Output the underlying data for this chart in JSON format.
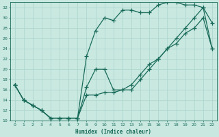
{
  "xlabel": "Humidex (Indice chaleur)",
  "xlim": [
    -0.5,
    22.5
  ],
  "ylim": [
    10,
    33
  ],
  "yticks": [
    10,
    12,
    14,
    16,
    18,
    20,
    22,
    24,
    26,
    28,
    30,
    32
  ],
  "xticks": [
    0,
    1,
    2,
    3,
    4,
    5,
    6,
    7,
    8,
    9,
    10,
    11,
    12,
    13,
    14,
    15,
    16,
    17,
    18,
    19,
    20,
    21,
    22
  ],
  "bg_color": "#c8e8e0",
  "grid_color": "#b0d8d0",
  "line_color": "#1a6b5a",
  "line1_x": [
    0,
    1,
    2,
    3,
    4,
    5,
    6,
    7,
    8,
    9,
    10,
    11,
    12,
    13,
    14,
    15,
    16,
    17,
    18,
    19,
    20,
    21,
    22
  ],
  "line1_y": [
    17,
    14,
    13,
    12,
    10.5,
    10.5,
    10.5,
    10.5,
    22.5,
    27.5,
    30,
    29.5,
    31.5,
    31.5,
    31,
    31,
    32.5,
    33,
    33,
    32.5,
    32.5,
    32,
    29
  ],
  "line2_x": [
    0,
    1,
    2,
    3,
    4,
    5,
    6,
    7,
    8,
    9,
    10,
    11,
    12,
    13,
    14,
    15,
    16,
    17,
    18,
    19,
    20,
    21,
    22
  ],
  "line2_y": [
    17,
    14,
    13,
    12,
    10.5,
    10.5,
    10.5,
    10.5,
    16.5,
    20,
    20,
    16,
    16,
    16,
    18,
    20,
    22,
    24,
    26,
    28,
    30,
    32,
    24
  ],
  "line3_x": [
    0,
    1,
    2,
    3,
    4,
    5,
    6,
    7,
    8,
    9,
    10,
    11,
    12,
    13,
    14,
    15,
    16,
    17,
    18,
    19,
    20,
    21,
    22
  ],
  "line3_y": [
    17,
    14,
    13,
    12,
    10.5,
    10.5,
    10.5,
    10.5,
    15,
    15,
    15.5,
    15.5,
    16,
    17,
    19,
    21,
    22,
    24,
    25,
    27,
    28,
    30,
    24
  ]
}
